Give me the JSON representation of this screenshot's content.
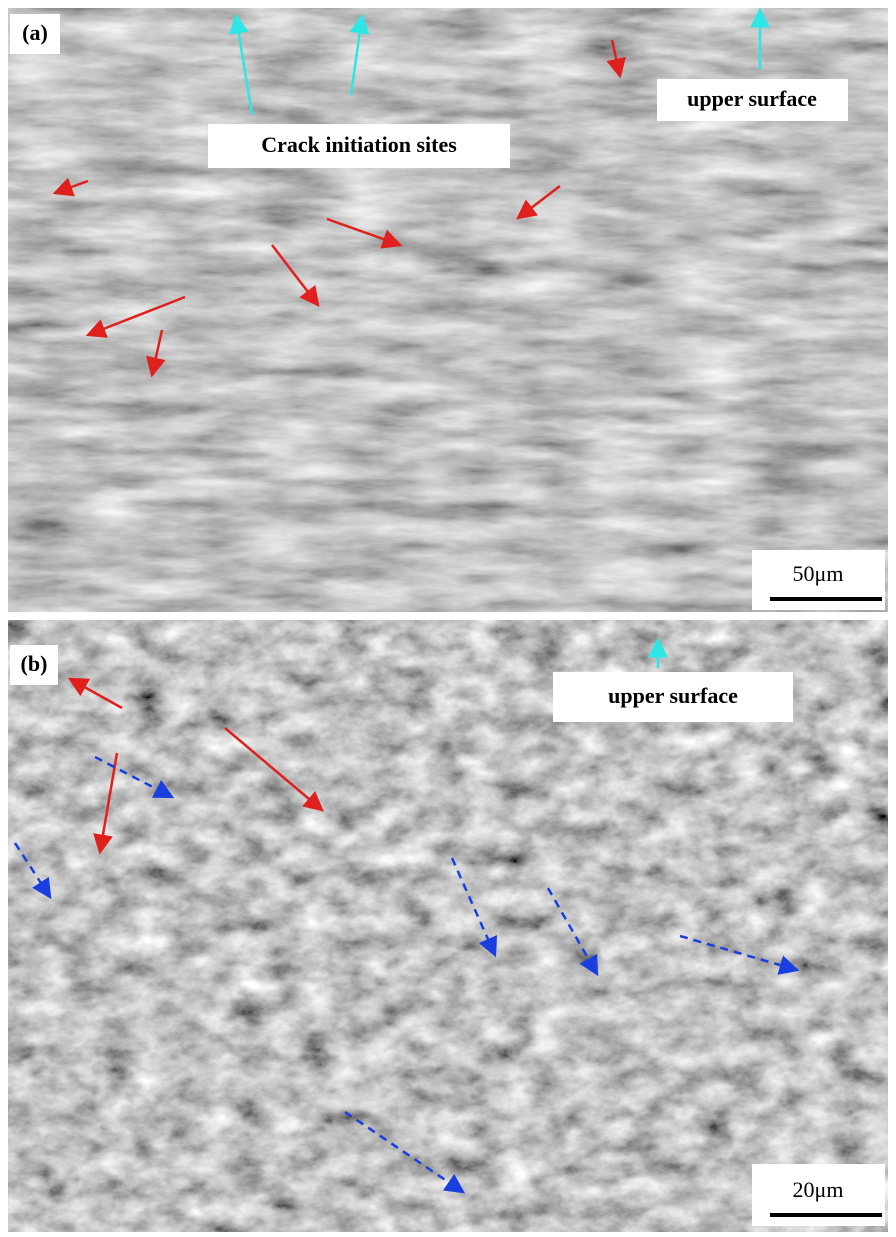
{
  "panels": [
    {
      "label": "(a)",
      "annotations": [
        "Crack initiation sites",
        "upper surface"
      ],
      "scale_bar": "50μm"
    },
    {
      "label": "(b)",
      "annotations": [
        "upper surface"
      ],
      "scale_bar": "20μm"
    }
  ]
}
